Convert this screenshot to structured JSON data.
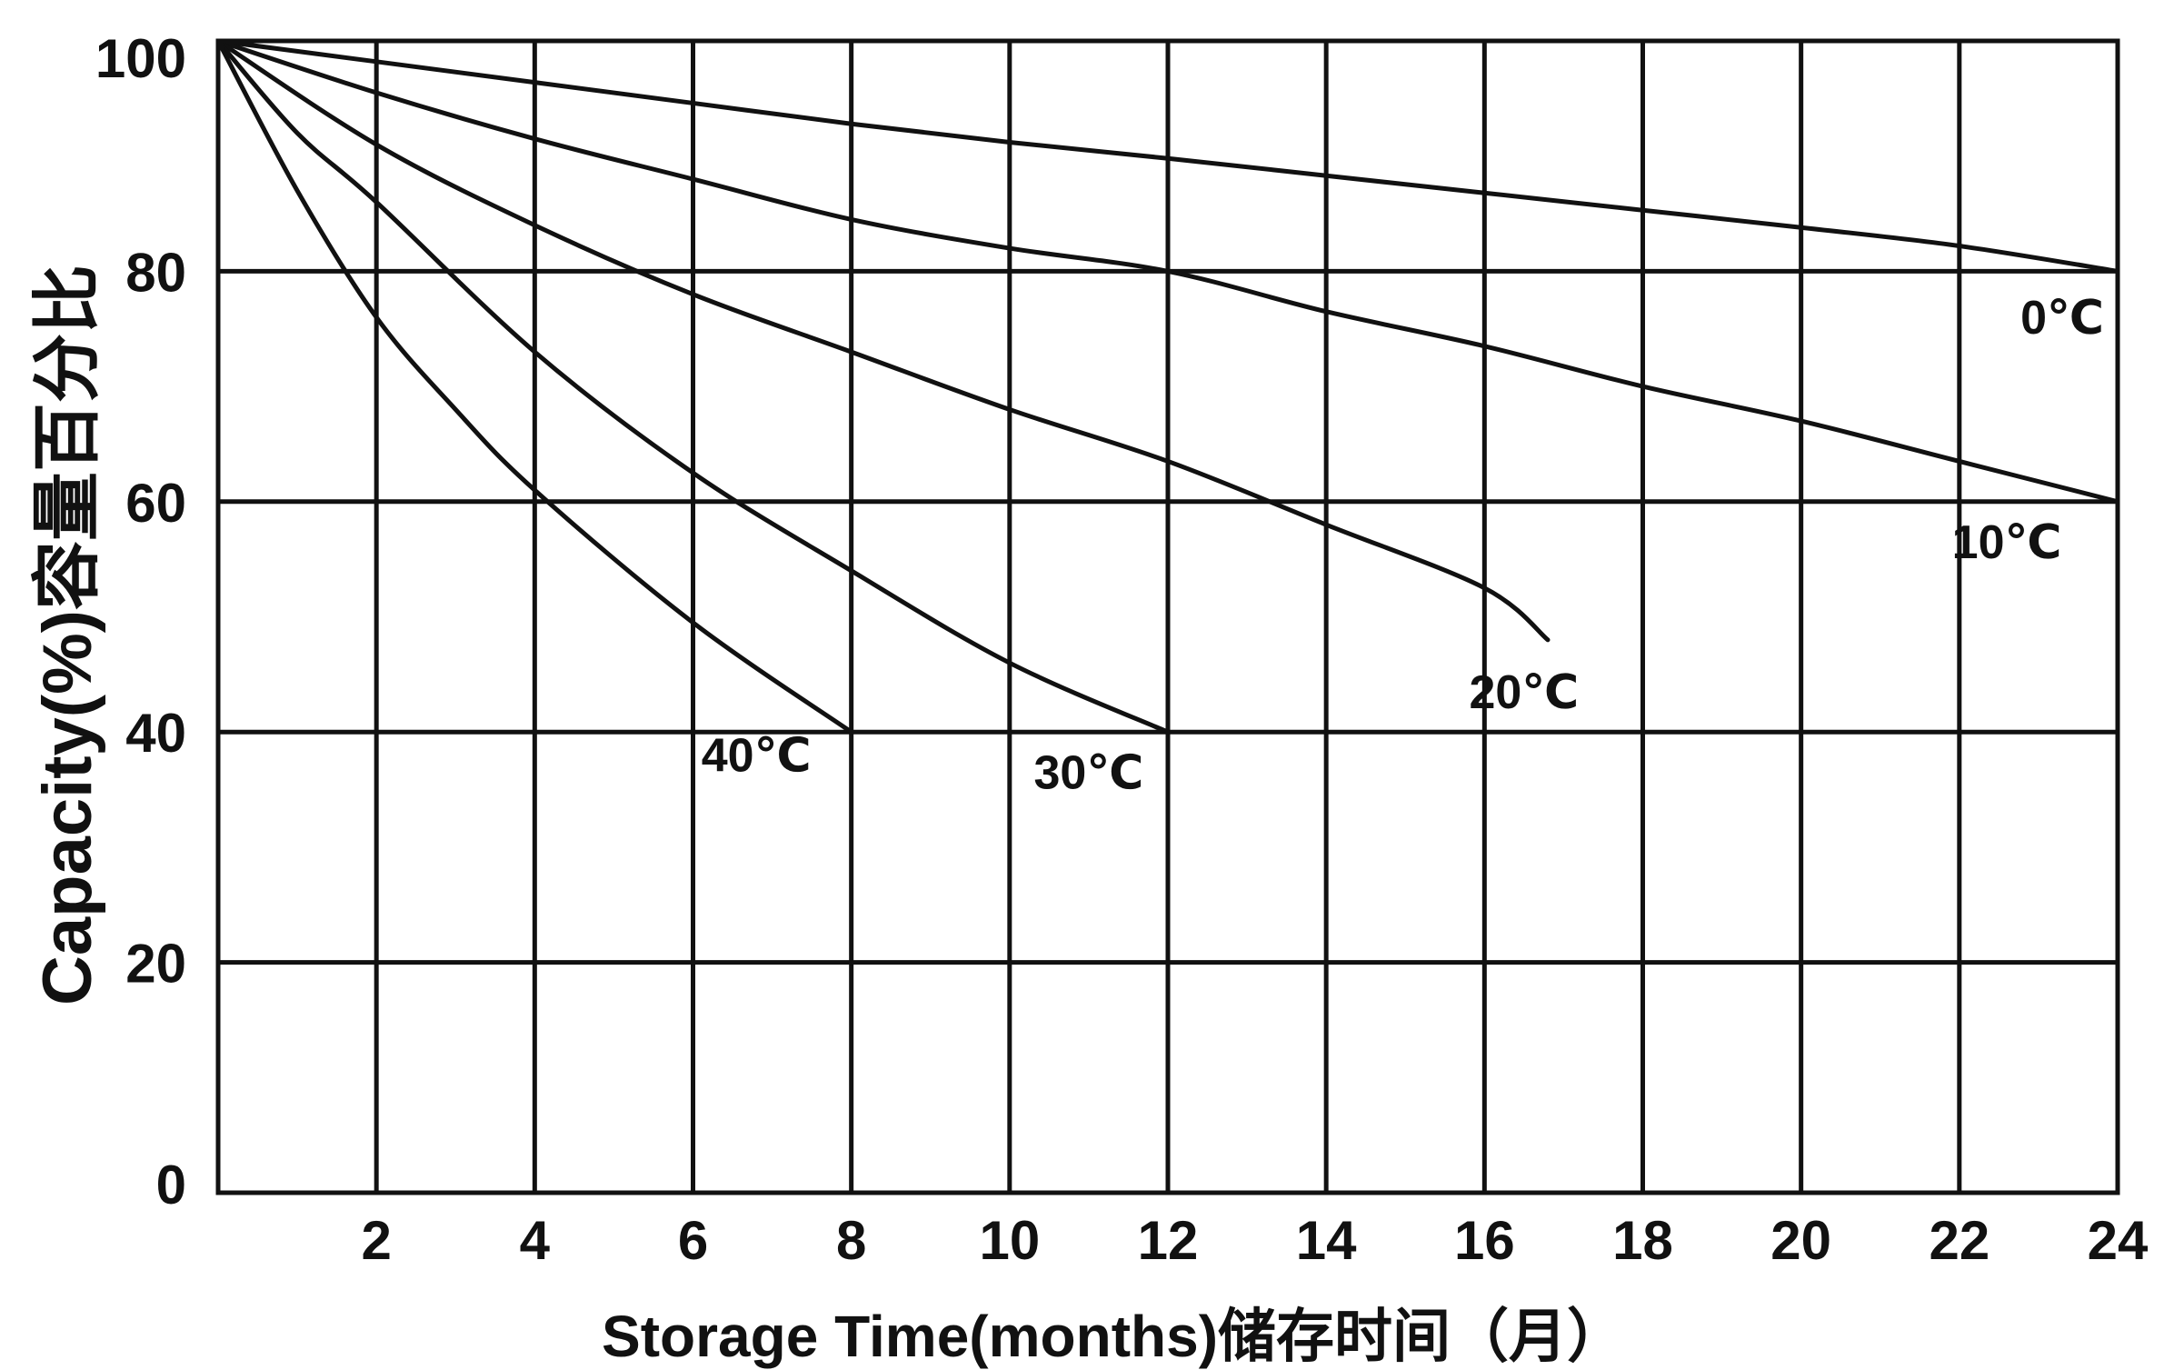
{
  "chart_data": {
    "type": "line",
    "xlabel": "Storage Time(months)储存时间（月）",
    "ylabel": "Capacity(%)容量百分比",
    "xlim": [
      0,
      24
    ],
    "ylim": [
      0,
      100
    ],
    "x_ticks": [
      2,
      4,
      6,
      8,
      10,
      12,
      14,
      16,
      18,
      20,
      22,
      24
    ],
    "y_ticks": [
      0,
      20,
      40,
      60,
      80,
      100
    ],
    "grid": true,
    "colors": {
      "line": "#111111",
      "background": "#ffffff"
    },
    "series": [
      {
        "name": "0℃",
        "x": [
          0,
          2,
          4,
          6,
          8,
          10,
          12,
          14,
          16,
          18,
          20,
          22,
          24
        ],
        "y": [
          100,
          98.2,
          96.4,
          94.6,
          92.8,
          91.2,
          89.8,
          88.3,
          86.8,
          85.3,
          83.8,
          82.2,
          80
        ]
      },
      {
        "name": "10℃",
        "x": [
          0,
          2,
          4,
          6,
          8,
          10,
          12,
          14,
          16,
          18,
          20,
          22,
          24
        ],
        "y": [
          100,
          95.5,
          91.5,
          88,
          84.5,
          82,
          80,
          76.5,
          73.5,
          70,
          67,
          63.5,
          60
        ]
      },
      {
        "name": "20℃",
        "x": [
          0,
          2,
          4,
          6,
          8,
          10,
          12,
          14,
          16,
          16.8
        ],
        "y": [
          100,
          91,
          84,
          78,
          73,
          68,
          63.5,
          58,
          52.5,
          48
        ]
      },
      {
        "name": "30℃",
        "x": [
          0,
          1,
          2,
          4,
          6,
          8,
          10,
          12
        ],
        "y": [
          100,
          92,
          86,
          73,
          62.5,
          54,
          46,
          40
        ]
      },
      {
        "name": "40℃",
        "x": [
          0,
          1,
          2,
          3,
          4,
          6,
          8
        ],
        "y": [
          100,
          87,
          76,
          68,
          61,
          49.5,
          40
        ]
      }
    ],
    "labels": [
      {
        "text": "0℃",
        "x": 23.3,
        "y": 76
      },
      {
        "text": "10℃",
        "x": 22.6,
        "y": 56.5
      },
      {
        "text": "20℃",
        "x": 16.5,
        "y": 43.5
      },
      {
        "text": "30℃",
        "x": 11.0,
        "y": 36.5
      },
      {
        "text": "40℃",
        "x": 6.8,
        "y": 38
      }
    ]
  }
}
